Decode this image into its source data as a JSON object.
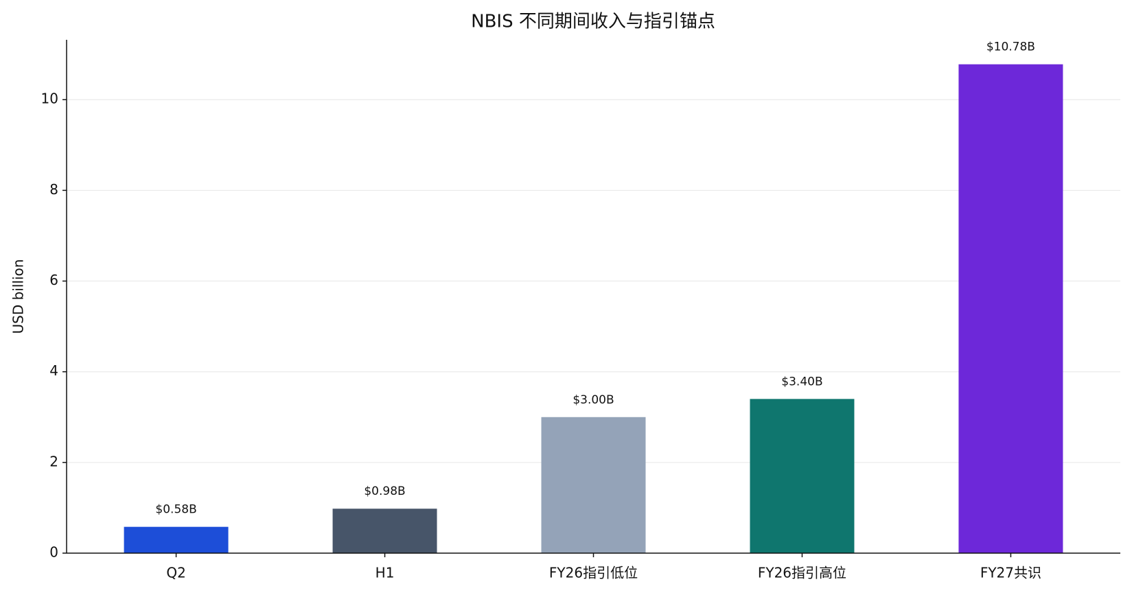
{
  "chart_data": {
    "type": "bar",
    "title": "NBIS 不同期间收入与指引锚点",
    "y_label": "USD billion",
    "categories": [
      "Q2",
      "H1",
      "FY26指引低位",
      "FY26指引高位",
      "FY27共识"
    ],
    "values": [
      0.58,
      0.98,
      3.0,
      3.4,
      10.78
    ],
    "value_labels": [
      "$0.58B",
      "$0.98B",
      "$3.00B",
      "$3.40B",
      "$10.78B"
    ],
    "colors": [
      "#1d4ed8",
      "#475569",
      "#94a3b8",
      "#0f766e",
      "#6d28d9"
    ],
    "ylim": [
      0,
      11.32
    ],
    "yticks": [
      0,
      2,
      4,
      6,
      8,
      10
    ],
    "grid": true
  }
}
